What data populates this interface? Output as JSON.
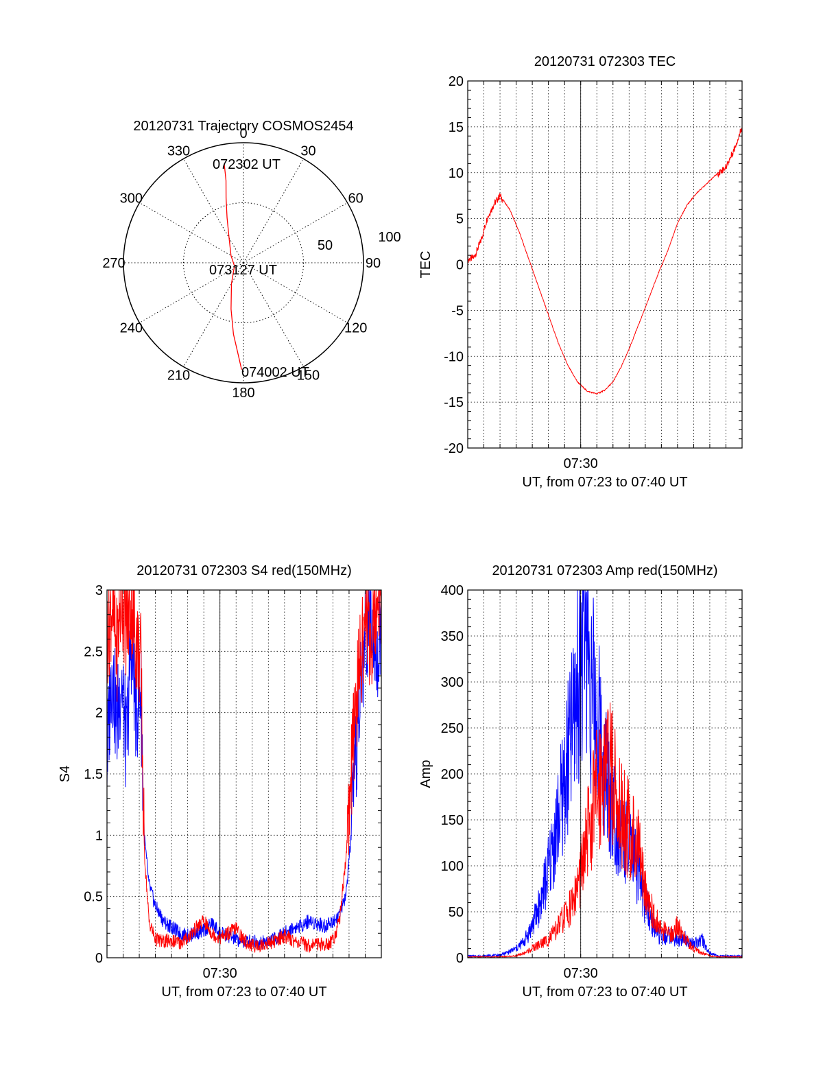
{
  "chart_data": [
    {
      "type": "polar",
      "title": "20120731 Trajectory COSMOS2454",
      "angle_labels": [
        "0",
        "30",
        "60",
        "90",
        "120",
        "150",
        "180",
        "210",
        "240",
        "270",
        "300",
        "330"
      ],
      "radius_labels": [
        "50",
        "100"
      ],
      "series": [
        {
          "color": "#ff0000",
          "points": [
            {
              "az": 349,
              "r": 84
            },
            {
              "az": 348,
              "r": 70
            },
            {
              "az": 345,
              "r": 56
            },
            {
              "az": 340,
              "r": 40
            },
            {
              "az": 330,
              "r": 24
            },
            {
              "az": 300,
              "r": 12
            },
            {
              "az": 250,
              "r": 8
            },
            {
              "az": 210,
              "r": 20
            },
            {
              "az": 195,
              "r": 40
            },
            {
              "az": 188,
              "r": 60
            },
            {
              "az": 183,
              "r": 78
            },
            {
              "az": 181,
              "r": 89
            }
          ]
        }
      ],
      "annotations": [
        {
          "text": "072302 UT",
          "az": 345,
          "r": 84
        },
        {
          "text": "073127 UT",
          "az": 180,
          "r": 3
        },
        {
          "text": "074002 UT",
          "az": 172,
          "r": 88
        }
      ]
    },
    {
      "type": "line",
      "title": "20120731 072303 TEC",
      "ylabel": "TEC",
      "xlabel": "UT, from 07:23 to 07:40 UT",
      "xlim": [
        0,
        17
      ],
      "x_ticks": [
        {
          "x": 7,
          "label": "07:30"
        }
      ],
      "ylim": [
        -20,
        20
      ],
      "y_ticks": [
        "-20",
        "-15",
        "-10",
        "-5",
        "0",
        "5",
        "10",
        "15",
        "20"
      ],
      "grid": true,
      "series": [
        {
          "color": "#ff0000",
          "x": [
            0,
            0.4,
            0.8,
            1.2,
            1.6,
            2.0,
            2.6,
            3.2,
            3.8,
            4.4,
            5.0,
            5.6,
            6.2,
            6.8,
            7.4,
            8.0,
            8.5,
            9.0,
            9.5,
            10.0,
            10.6,
            11.2,
            11.8,
            12.4,
            13.0,
            13.6,
            14.2,
            14.8,
            15.4,
            16.0,
            16.5,
            17.0
          ],
          "y": [
            0.5,
            0.8,
            2.5,
            5.0,
            6.5,
            7.5,
            6.0,
            3.5,
            0.5,
            -2.5,
            -5.5,
            -8.5,
            -11.0,
            -12.8,
            -13.8,
            -14.1,
            -13.7,
            -12.8,
            -11.2,
            -9.2,
            -6.5,
            -3.8,
            -1.0,
            1.5,
            4.5,
            6.5,
            7.8,
            8.8,
            9.8,
            10.6,
            12.5,
            15.0
          ]
        }
      ]
    },
    {
      "type": "line",
      "title": "20120731 072303 S4 red(150MHz)",
      "ylabel": "S4",
      "xlabel": "UT, from 07:23 to 07:40 UT",
      "xlim": [
        0,
        17
      ],
      "x_ticks": [
        {
          "x": 7,
          "label": "07:30"
        }
      ],
      "ylim": [
        0,
        3
      ],
      "y_ticks": [
        "0",
        "0.5",
        "1",
        "1.5",
        "2",
        "2.5",
        "3"
      ],
      "grid": true,
      "series": [
        {
          "color": "#0000ff",
          "x": [
            0,
            0.3,
            0.6,
            0.9,
            1.2,
            1.5,
            1.8,
            2.1,
            2.3,
            2.6,
            3.0,
            3.5,
            4.0,
            4.5,
            5.0,
            5.5,
            6.0,
            6.5,
            7.0,
            7.5,
            8.0,
            8.5,
            9.0,
            9.5,
            10.0,
            10.5,
            11.0,
            11.5,
            12.0,
            12.5,
            13.0,
            13.5,
            14.0,
            14.4,
            14.8,
            15.2,
            15.6,
            16.0,
            16.4,
            16.8,
            17.0
          ],
          "y": [
            1.6,
            2.4,
            1.9,
            2.3,
            1.7,
            2.6,
            2.0,
            2.2,
            1.0,
            0.6,
            0.42,
            0.3,
            0.25,
            0.2,
            0.18,
            0.2,
            0.22,
            0.28,
            0.2,
            0.18,
            0.15,
            0.13,
            0.14,
            0.12,
            0.14,
            0.16,
            0.2,
            0.24,
            0.26,
            0.3,
            0.28,
            0.26,
            0.3,
            0.35,
            0.5,
            1.1,
            2.0,
            2.6,
            2.9,
            2.4,
            2.8
          ]
        },
        {
          "color": "#ff0000",
          "x": [
            0,
            0.3,
            0.6,
            0.9,
            1.2,
            1.5,
            1.8,
            2.1,
            2.3,
            2.6,
            3.0,
            3.5,
            4.0,
            4.5,
            5.0,
            5.5,
            6.0,
            6.5,
            7.0,
            7.5,
            8.0,
            8.5,
            9.0,
            9.5,
            10.0,
            10.5,
            11.0,
            11.5,
            12.0,
            12.5,
            13.0,
            13.5,
            14.0,
            14.4,
            14.8,
            15.2,
            15.6,
            16.0,
            16.4,
            16.8,
            17.0
          ],
          "y": [
            2.6,
            2.9,
            2.5,
            3.0,
            2.7,
            2.9,
            2.6,
            2.4,
            0.9,
            0.3,
            0.15,
            0.13,
            0.14,
            0.12,
            0.16,
            0.24,
            0.3,
            0.2,
            0.16,
            0.2,
            0.24,
            0.14,
            0.1,
            0.1,
            0.12,
            0.14,
            0.18,
            0.14,
            0.12,
            0.1,
            0.12,
            0.1,
            0.14,
            0.3,
            0.8,
            1.6,
            2.3,
            2.8,
            2.6,
            3.0,
            2.9
          ]
        }
      ]
    },
    {
      "type": "line",
      "title": "20120731 072303 Amp red(150MHz)",
      "ylabel": "Amp",
      "xlabel": "UT, from 07:23 to 07:40 UT",
      "xlim": [
        0,
        17
      ],
      "x_ticks": [
        {
          "x": 7,
          "label": "07:30"
        }
      ],
      "ylim": [
        0,
        400
      ],
      "y_ticks": [
        "0",
        "50",
        "100",
        "150",
        "200",
        "250",
        "300",
        "350",
        "400"
      ],
      "grid": true,
      "series": [
        {
          "color": "#0000ff",
          "x": [
            0,
            1,
            2,
            2.5,
            3.0,
            3.5,
            4.0,
            4.5,
            5.0,
            5.5,
            6.0,
            6.5,
            7.0,
            7.3,
            7.6,
            8.0,
            8.4,
            8.8,
            9.2,
            9.6,
            10.0,
            10.5,
            11.0,
            11.5,
            12.0,
            12.5,
            13.0,
            13.5,
            14.0,
            14.5,
            15.0,
            15.5,
            16.0,
            17.0
          ],
          "y": [
            2,
            2,
            3,
            6,
            10,
            18,
            35,
            60,
            95,
            140,
            190,
            250,
            330,
            380,
            300,
            260,
            220,
            180,
            150,
            130,
            120,
            95,
            60,
            35,
            20,
            25,
            18,
            22,
            15,
            20,
            5,
            2,
            2,
            2
          ]
        },
        {
          "color": "#ff0000",
          "x": [
            0,
            2,
            3,
            3.5,
            4.0,
            4.5,
            5.0,
            5.5,
            6.0,
            6.5,
            7.0,
            7.5,
            8.0,
            8.5,
            9.0,
            9.5,
            10.0,
            10.5,
            11.0,
            11.5,
            12.0,
            12.5,
            13.0,
            13.5,
            14.0,
            14.5,
            15.0,
            15.5,
            17.0
          ],
          "y": [
            1,
            1,
            2,
            5,
            10,
            15,
            20,
            30,
            45,
            60,
            90,
            140,
            180,
            220,
            190,
            160,
            140,
            120,
            80,
            45,
            30,
            25,
            35,
            20,
            10,
            5,
            2,
            1,
            1
          ]
        }
      ]
    }
  ]
}
